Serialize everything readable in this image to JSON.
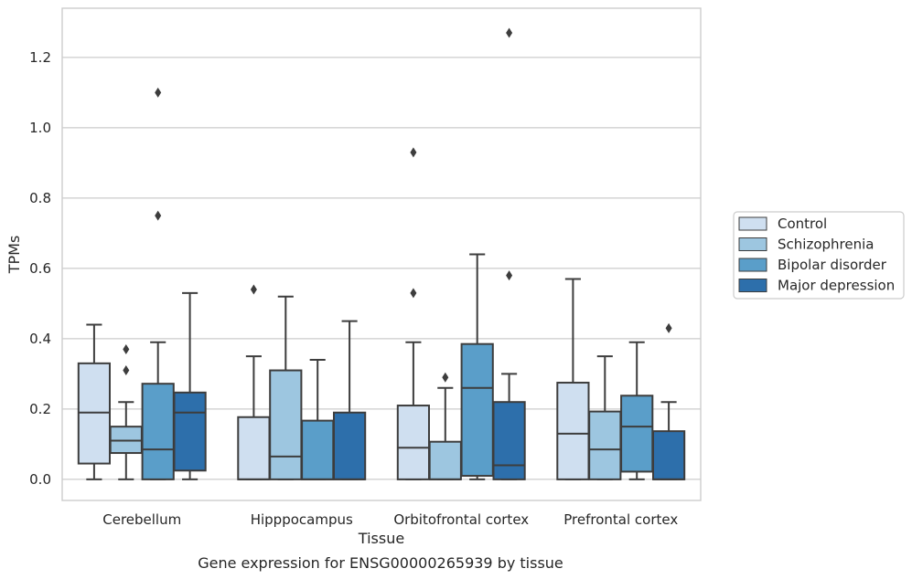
{
  "chart_data": {
    "type": "box",
    "caption": "Gene expression for ENSG00000265939 by tissue",
    "xlabel": "Tissue",
    "ylabel": "TPMs",
    "ylim": [
      -0.06,
      1.34
    ],
    "yticks": [
      "0.0",
      "0.2",
      "0.4",
      "0.6",
      "0.8",
      "1.0",
      "1.2"
    ],
    "grid": "horizontal",
    "legend_position": "right",
    "categories": [
      "Cerebellum",
      "Hipppocampus",
      "Orbitofrontal cortex",
      "Prefrontal cortex"
    ],
    "series": [
      {
        "name": "Control",
        "color": "#cfdff0",
        "boxes": [
          {
            "whislo": 0.0,
            "q1": 0.045,
            "med": 0.19,
            "q3": 0.33,
            "whishi": 0.44,
            "fliers": []
          },
          {
            "whislo": 0.0,
            "q1": 0.0,
            "med": 0.0,
            "q3": 0.177,
            "whishi": 0.35,
            "fliers": [
              0.54
            ]
          },
          {
            "whislo": 0.0,
            "q1": 0.0,
            "med": 0.09,
            "q3": 0.21,
            "whishi": 0.39,
            "fliers": [
              0.53,
              0.93
            ]
          },
          {
            "whislo": 0.0,
            "q1": 0.0,
            "med": 0.13,
            "q3": 0.275,
            "whishi": 0.57,
            "fliers": []
          }
        ]
      },
      {
        "name": "Schizophrenia",
        "color": "#9dc6e0",
        "boxes": [
          {
            "whislo": 0.0,
            "q1": 0.075,
            "med": 0.11,
            "q3": 0.15,
            "whishi": 0.22,
            "fliers": [
              0.31,
              0.37
            ]
          },
          {
            "whislo": 0.0,
            "q1": 0.0,
            "med": 0.065,
            "q3": 0.31,
            "whishi": 0.52,
            "fliers": []
          },
          {
            "whislo": 0.0,
            "q1": 0.0,
            "med": 0.0,
            "q3": 0.107,
            "whishi": 0.26,
            "fliers": [
              0.29
            ]
          },
          {
            "whislo": 0.0,
            "q1": 0.0,
            "med": 0.085,
            "q3": 0.193,
            "whishi": 0.35,
            "fliers": []
          }
        ]
      },
      {
        "name": "Bipolar disorder",
        "color": "#5a9ec9",
        "boxes": [
          {
            "whislo": 0.0,
            "q1": 0.0,
            "med": 0.085,
            "q3": 0.272,
            "whishi": 0.39,
            "fliers": [
              0.75,
              1.1
            ]
          },
          {
            "whislo": 0.0,
            "q1": 0.0,
            "med": 0.0,
            "q3": 0.167,
            "whishi": 0.34,
            "fliers": []
          },
          {
            "whislo": 0.0,
            "q1": 0.01,
            "med": 0.26,
            "q3": 0.385,
            "whishi": 0.64,
            "fliers": []
          },
          {
            "whislo": 0.0,
            "q1": 0.022,
            "med": 0.15,
            "q3": 0.238,
            "whishi": 0.39,
            "fliers": []
          }
        ]
      },
      {
        "name": "Major depression",
        "color": "#2d6fab",
        "boxes": [
          {
            "whislo": 0.0,
            "q1": 0.025,
            "med": 0.19,
            "q3": 0.247,
            "whishi": 0.53,
            "fliers": []
          },
          {
            "whislo": 0.0,
            "q1": 0.0,
            "med": 0.0,
            "q3": 0.19,
            "whishi": 0.45,
            "fliers": []
          },
          {
            "whislo": 0.0,
            "q1": 0.0,
            "med": 0.04,
            "q3": 0.22,
            "whishi": 0.3,
            "fliers": [
              0.58,
              1.27
            ]
          },
          {
            "whislo": 0.0,
            "q1": 0.0,
            "med": 0.0,
            "q3": 0.137,
            "whishi": 0.22,
            "fliers": [
              0.43
            ]
          }
        ]
      }
    ]
  }
}
